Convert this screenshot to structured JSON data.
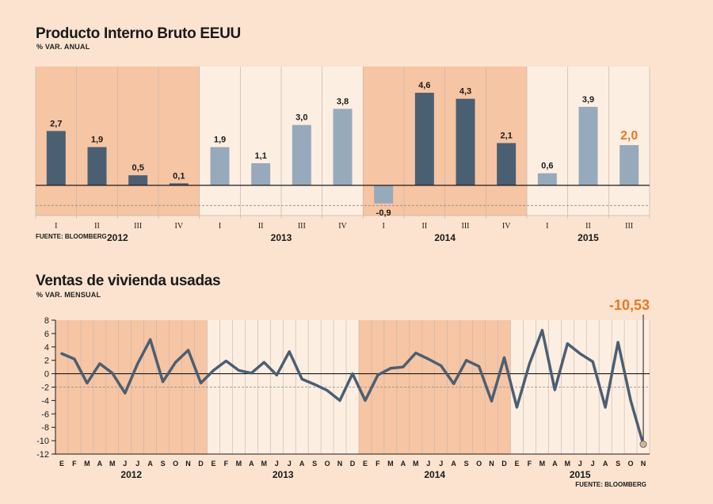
{
  "chart_data": [
    {
      "type": "bar",
      "title": "Producto Interno Bruto EEUU",
      "subtitle": "% VAR. ANUAL",
      "source": "FUENTE: BLOOMBERG",
      "categories": [
        "I",
        "II",
        "III",
        "IV",
        "I",
        "II",
        "III",
        "IV",
        "I",
        "II",
        "III",
        "IV",
        "I",
        "II",
        "III"
      ],
      "years": [
        {
          "label": "2012",
          "start": 0,
          "end": 3
        },
        {
          "label": "2013",
          "start": 4,
          "end": 7
        },
        {
          "label": "2014",
          "start": 8,
          "end": 11
        },
        {
          "label": "2015",
          "start": 12,
          "end": 14
        }
      ],
      "values": [
        2.7,
        1.9,
        0.5,
        0.1,
        1.9,
        1.1,
        3.0,
        3.8,
        -0.9,
        4.6,
        4.3,
        2.1,
        0.6,
        3.9,
        2.0
      ],
      "value_labels": [
        "2,7",
        "1,9",
        "0,5",
        "0,1",
        "1,9",
        "1,1",
        "3,0",
        "3,8",
        "-0,9",
        "4,6",
        "4,3",
        "2,1",
        "0,6",
        "3,9",
        "2,0"
      ],
      "ylim": [
        -1.5,
        5.9
      ],
      "colors": {
        "dark": "#4b5f73",
        "light": "#97aabb",
        "highlight": "#e87722",
        "shade": "#f6c5a4"
      }
    },
    {
      "type": "line",
      "title": "Ventas de vivienda usadas",
      "subtitle": "% VAR. MENSUAL",
      "source": "FUENTE: BLOOMBERG",
      "highlight_label": "-10,53",
      "x": [
        "E",
        "F",
        "M",
        "A",
        "M",
        "J",
        "J",
        "A",
        "S",
        "O",
        "N",
        "D",
        "E",
        "F",
        "M",
        "A",
        "M",
        "J",
        "J",
        "A",
        "S",
        "O",
        "N",
        "D",
        "E",
        "F",
        "M",
        "A",
        "M",
        "J",
        "J",
        "A",
        "S",
        "O",
        "N",
        "D",
        "E",
        "F",
        "M",
        "A",
        "M",
        "J",
        "J",
        "A",
        "S",
        "O",
        "N"
      ],
      "years": [
        {
          "label": "2012",
          "start": 0,
          "end": 11
        },
        {
          "label": "2013",
          "start": 12,
          "end": 23
        },
        {
          "label": "2014",
          "start": 24,
          "end": 35
        },
        {
          "label": "2015",
          "start": 36,
          "end": 46
        }
      ],
      "values": [
        3.0,
        2.2,
        -1.4,
        1.5,
        0.1,
        -2.9,
        1.5,
        5.1,
        -1.2,
        1.7,
        3.5,
        -1.4,
        0.5,
        1.9,
        0.5,
        0.1,
        1.7,
        -0.2,
        3.3,
        -0.8,
        -1.6,
        -2.5,
        -4.0,
        0.0,
        -4.0,
        -0.2,
        0.8,
        1.0,
        3.1,
        2.2,
        1.2,
        -1.5,
        2.0,
        1.1,
        -4.1,
        2.4,
        -5.0,
        1.5,
        6.5,
        -2.4,
        4.5,
        3.0,
        1.8,
        -5.0,
        4.7,
        -4.0,
        -10.53
      ],
      "yticks": [
        8,
        6,
        4,
        2,
        0,
        -2,
        -4,
        -6,
        -8,
        -10,
        -12
      ],
      "ylim": [
        -12,
        8
      ],
      "colors": {
        "line": "#4b5f73",
        "highlight": "#e87722",
        "shade": "#f6c5a4"
      }
    }
  ]
}
